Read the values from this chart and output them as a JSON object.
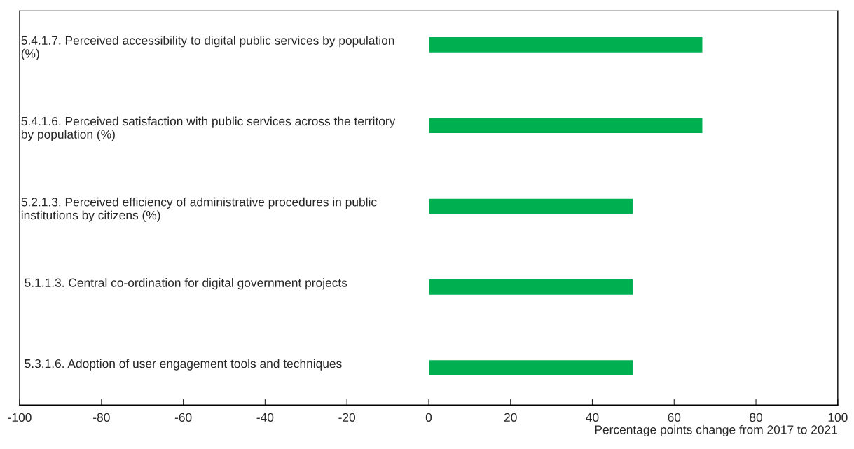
{
  "chart_data": {
    "type": "bar",
    "orientation": "horizontal",
    "categories": [
      "5.4.1.7. Perceived accessibility to digital public services by population\n(%)",
      "5.4.1.6. Perceived satisfaction with public services across the territory\nby population (%)",
      "5.2.1.3. Perceived efficiency of administrative procedures in public\ninstitutions by citizens (%)",
      " 5.1.1.3. Central co-ordination for digital government projects",
      " 5.3.1.6. Adoption of user engagement tools and techniques"
    ],
    "values": [
      67,
      67,
      50,
      50,
      50
    ],
    "color": "#00b050",
    "xlim": [
      -100,
      100
    ],
    "xticks": [
      -100,
      -80,
      -60,
      -40,
      -20,
      0,
      20,
      40,
      60,
      80,
      100
    ],
    "xlabel": "Percentage points change from 2017 to 2021",
    "grid": false,
    "legend": false
  }
}
